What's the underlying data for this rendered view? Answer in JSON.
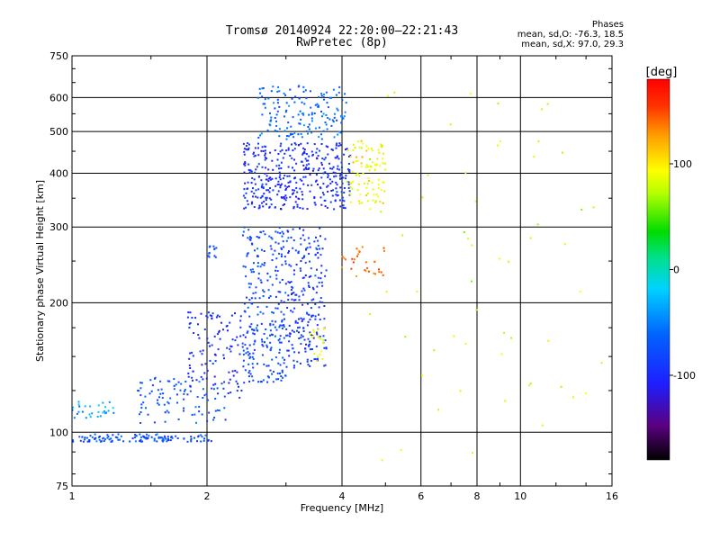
{
  "header": {
    "title_line1": "Tromsø 20140924 22:20:00–22:21:43",
    "title_line2": "RwPretec (8p)",
    "phases_heading": "Phases",
    "phases_o": "mean, sd,O: -76.3, 18.5",
    "phases_x": "mean, sd,X: 97.0, 29.3"
  },
  "colorbar": {
    "unit_label": "[deg]",
    "tick_labels": [
      "100",
      "0",
      "-100"
    ],
    "tick_values": [
      100,
      0,
      -100
    ],
    "range": [
      -180,
      180
    ],
    "colormap": "rainbow (black-purple-blue-cyan-green-yellow-orange-red)"
  },
  "chart_data": {
    "type": "scatter",
    "title": "Tromsø 20140924 22:20:00–22:21:43",
    "subtitle": "RwPretec (8p)",
    "xlabel": "Frequency [MHz]",
    "ylabel": "Stationary phase Virtual Height [km]",
    "xscale": "log2",
    "yscale": "log",
    "xlim": [
      1,
      16
    ],
    "ylim": [
      75,
      750
    ],
    "x_ticks": [
      1,
      2,
      4,
      6,
      8,
      10,
      16
    ],
    "x_tick_labels": [
      "1",
      "2",
      "4",
      "6",
      "8",
      "10",
      "16"
    ],
    "y_ticks": [
      75,
      100,
      200,
      300,
      400,
      500,
      600,
      750
    ],
    "y_tick_labels": [
      "75",
      "100",
      "200",
      "300",
      "400",
      "500",
      "600",
      "750"
    ],
    "grid": true,
    "color_encodes": "phase (deg)",
    "clusters": [
      {
        "x_range": [
          1.0,
          2.05
        ],
        "y_range": [
          95,
          99
        ],
        "phase_mean": -75,
        "n": 120
      },
      {
        "x_range": [
          1.0,
          1.25
        ],
        "y_range": [
          108,
          118
        ],
        "phase_mean": -40,
        "n": 30
      },
      {
        "x_range": [
          1.4,
          2.2
        ],
        "y_range": [
          105,
          135
        ],
        "phase_mean": -70,
        "n": 90
      },
      {
        "x_range": [
          1.8,
          2.4
        ],
        "y_range": [
          120,
          190
        ],
        "phase_mean": -100,
        "n": 110
      },
      {
        "x_range": [
          2.0,
          2.1
        ],
        "y_range": [
          255,
          275
        ],
        "phase_mean": -70,
        "n": 12
      },
      {
        "x_range": [
          2.4,
          3.0
        ],
        "y_range": [
          130,
          300
        ],
        "phase_mean": -80,
        "n": 260
      },
      {
        "x_range": [
          3.0,
          3.7
        ],
        "y_range": [
          140,
          300
        ],
        "phase_mean": -90,
        "n": 220
      },
      {
        "x_range": [
          3.4,
          3.7
        ],
        "y_range": [
          145,
          175
        ],
        "phase_mean": 90,
        "n": 20
      },
      {
        "x_range": [
          2.4,
          4.2
        ],
        "y_range": [
          330,
          470
        ],
        "phase_mean": -100,
        "n": 380
      },
      {
        "x_range": [
          2.6,
          4.1
        ],
        "y_range": [
          480,
          640
        ],
        "phase_mean": -60,
        "n": 160
      },
      {
        "x_range": [
          4.1,
          5.0
        ],
        "y_range": [
          340,
          480
        ],
        "phase_mean": 95,
        "n": 90
      },
      {
        "x_range": [
          4.0,
          5.0
        ],
        "y_range": [
          230,
          270
        ],
        "phase_mean": 140,
        "n": 30
      },
      {
        "x_range": [
          4.6,
          16.0
        ],
        "y_range": [
          80,
          650
        ],
        "phase_mean": 80,
        "n": 60
      }
    ]
  }
}
